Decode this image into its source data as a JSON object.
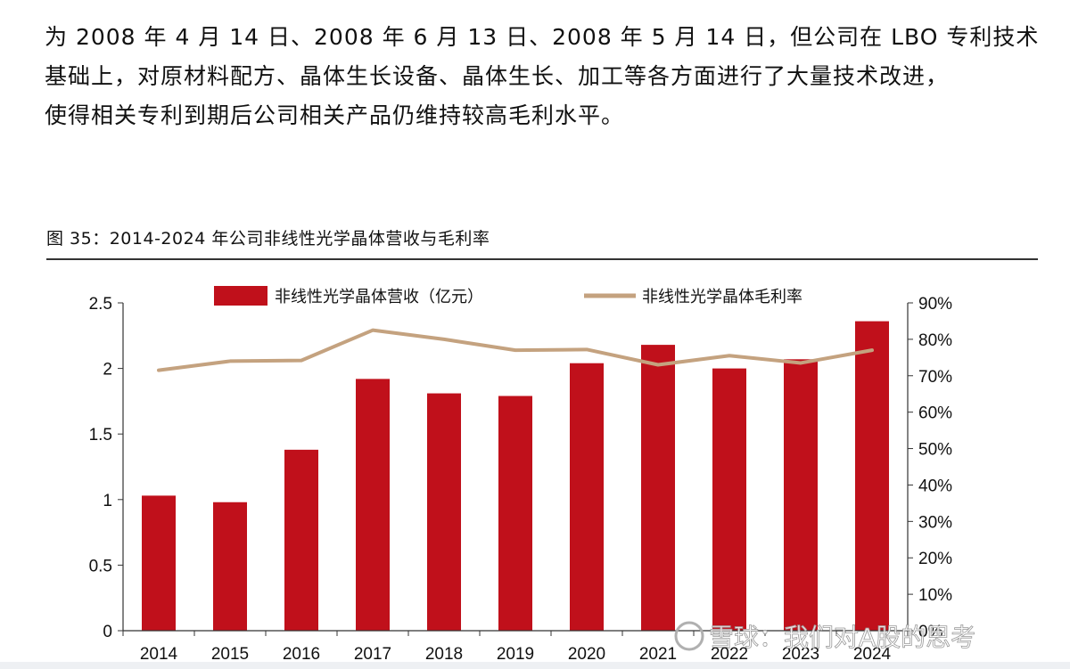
{
  "paragraph": {
    "lines": [
      "为 2008 年 4 月 14 日、2008 年 6 月 13 日、2008 年 5 月 14 日，但公司在 LBO 专利技术",
      "基础上，对原材料配方、晶体生长设备、晶体生长、加工等各方面进行了大量技术改进，",
      "使得相关专利到期后公司相关产品仍维持较高毛利水平。"
    ]
  },
  "figure": {
    "title": "图 35：2014-2024 年公司非线性光学晶体营收与毛利率"
  },
  "watermark": "雪球：我们对A股的思考",
  "colors": {
    "bar": "#c0101b",
    "line": "#c4a27f",
    "axis": "#333333",
    "rule": "#333333"
  },
  "chart_data": {
    "type": "bar+line",
    "categories": [
      "2014",
      "2015",
      "2016",
      "2017",
      "2018",
      "2019",
      "2020",
      "2021",
      "2022",
      "2023",
      "2024"
    ],
    "series": [
      {
        "name": "非线性光学晶体营收（亿元）",
        "type": "bar",
        "axis": "left",
        "values": [
          1.03,
          0.98,
          1.38,
          1.92,
          1.81,
          1.79,
          2.04,
          2.18,
          2.0,
          2.07,
          2.36
        ]
      },
      {
        "name": "非线性光学晶体毛利率",
        "type": "line",
        "axis": "right",
        "values": [
          71.5,
          74.0,
          74.2,
          82.5,
          80.0,
          77.0,
          77.2,
          73.0,
          75.5,
          73.5,
          77.0
        ]
      }
    ],
    "left_axis": {
      "ylim": [
        0,
        2.5
      ],
      "ticks": [
        "0",
        "0.5",
        "1",
        "1.5",
        "2",
        "2.5"
      ],
      "tick_values": [
        0,
        0.5,
        1,
        1.5,
        2,
        2.5
      ]
    },
    "right_axis": {
      "ylim": [
        0,
        90
      ],
      "ticks": [
        "0%",
        "10%",
        "20%",
        "30%",
        "40%",
        "50%",
        "60%",
        "70%",
        "80%",
        "90%"
      ],
      "tick_values": [
        0,
        10,
        20,
        30,
        40,
        50,
        60,
        70,
        80,
        90
      ]
    },
    "legend_position": "top-center",
    "grid": false
  }
}
